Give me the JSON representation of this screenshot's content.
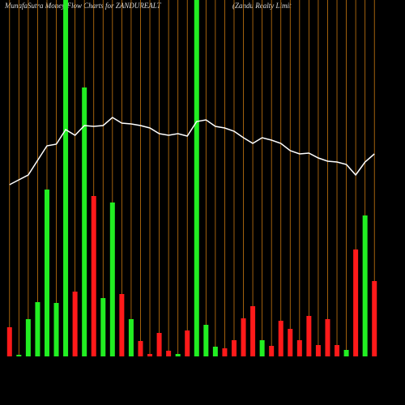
{
  "chart_data": {
    "type": "bar",
    "title": "MunafaSutra  Money Flow  Charts for ZANDUREALT",
    "subtitle": "(Zandu   Realty Limit",
    "ylim": [
      0,
      440
    ],
    "up_color": "#22ee22",
    "down_color": "#ff1a1a",
    "line_color": "#ffffff",
    "grid_color": "#c87810",
    "series": [
      {
        "name": "money flow",
        "values": [
          36,
          2,
          46,
          67,
          206,
          66,
          440,
          80,
          332,
          198,
          72,
          190,
          77,
          46,
          19,
          3,
          29,
          7,
          3,
          32,
          440,
          39,
          12,
          10,
          20,
          47,
          62,
          20,
          13,
          44,
          34,
          20,
          50,
          14,
          46,
          14,
          8,
          132,
          174,
          93
        ],
        "direction": [
          "d",
          "u",
          "u",
          "u",
          "u",
          "u",
          "u",
          "d",
          "u",
          "d",
          "u",
          "u",
          "d",
          "u",
          "d",
          "d",
          "d",
          "d",
          "u",
          "d",
          "u",
          "u",
          "u",
          "d",
          "d",
          "d",
          "d",
          "u",
          "d",
          "d",
          "d",
          "d",
          "d",
          "d",
          "d",
          "d",
          "u",
          "d",
          "u",
          "d"
        ]
      },
      {
        "name": "price",
        "values": [
          212,
          218,
          224,
          242,
          260,
          262,
          280,
          273,
          285,
          284,
          285,
          295,
          288,
          287,
          285,
          282,
          275,
          273,
          275,
          272,
          290,
          292,
          284,
          282,
          278,
          270,
          263,
          270,
          267,
          263,
          254,
          250,
          251,
          245,
          241,
          240,
          237,
          224,
          240,
          250
        ]
      }
    ]
  }
}
